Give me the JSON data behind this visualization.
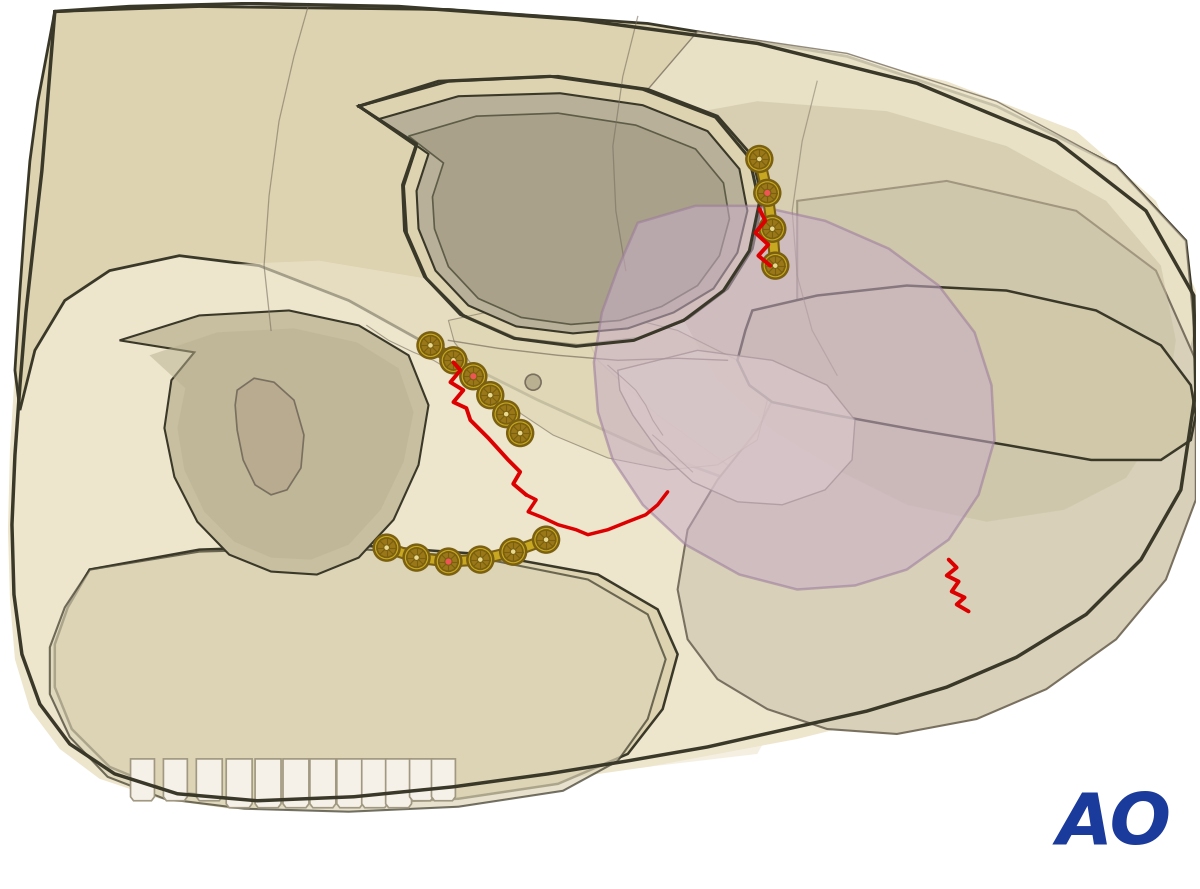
{
  "background_color": "#ffffff",
  "bg_border_color": "#e8e0e0",
  "skull_light": "#ede5cc",
  "skull_medium": "#ddd3b0",
  "skull_dark": "#ccc0a0",
  "skull_darker": "#b8ab90",
  "skull_outline": "#3a3828",
  "skull_inner_line": "#7a7060",
  "orbit_dark": "#b8b098",
  "orbit_darker": "#a8a088",
  "nasal_color": "#c8bfa0",
  "temporal_light": "#d8d0b8",
  "temporal_dark": "#c8bfa0",
  "zyg_arch_color": "#d0c8a8",
  "recon_fill": "#c8aec8",
  "recon_alpha": 0.55,
  "recon_edge": "#9a7a9a",
  "fracture_color": "#dd0000",
  "plate_fill": "#c8a820",
  "plate_edge": "#7a6010",
  "screw_inner": "#9a7818",
  "screw_hole_empty": "#e8d890",
  "screw_hole_red": "#ee5555",
  "ao_color": "#1a3a9c",
  "tooth_fill": "#f5f0e8",
  "tooth_edge": "#a09880",
  "figsize": [
    12.0,
    8.89
  ],
  "dpi": 100
}
